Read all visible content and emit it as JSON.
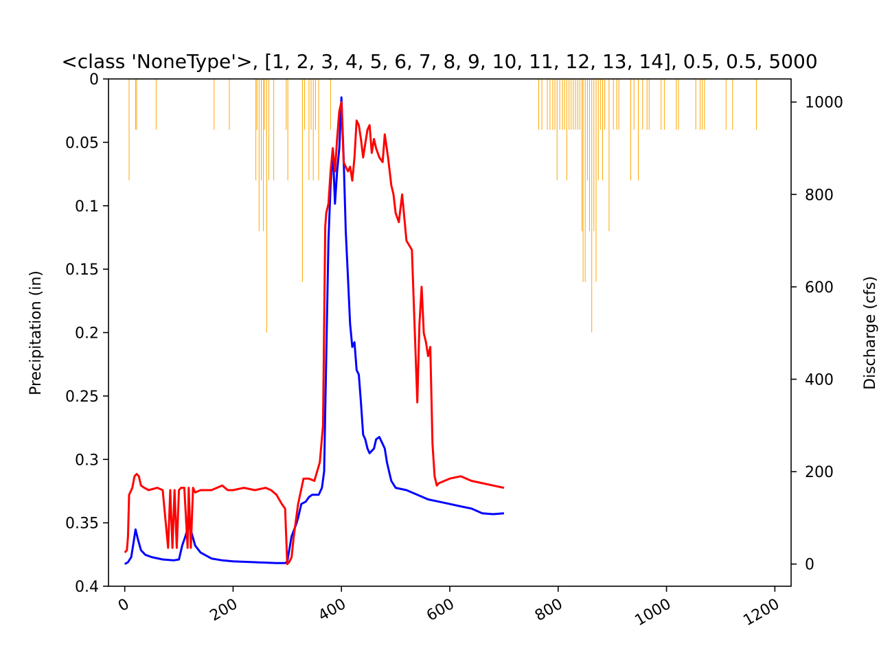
{
  "chart_data": {
    "type": "line",
    "title": "<class 'NoneType'>, [1, 2, 3, 4, 5, 6, 7, 8, 9, 10, 11, 12, 13, 14], 0.5, 0.5, 5000",
    "xlabel": "",
    "x_ticks": [
      "0",
      "200",
      "400",
      "600",
      "800",
      "1000",
      "1200"
    ],
    "xlim": [
      -30,
      1230
    ],
    "left_axis": {
      "label": "Precipitation (in)",
      "ylim": [
        0.4,
        0
      ],
      "inverted": true,
      "ticks": [
        "0",
        "0.05",
        "0.1",
        "0.15",
        "0.2",
        "0.25",
        "0.3",
        "0.35",
        "0.4"
      ]
    },
    "right_axis": {
      "label": "Discharge (cfs)",
      "ylim": [
        -48,
        1050
      ],
      "ticks": [
        "0",
        "200",
        "400",
        "600",
        "800",
        "1000"
      ]
    },
    "precipitation": {
      "color": "#ffa500",
      "type": "bar",
      "x": [
        8,
        20,
        22,
        58,
        165,
        193,
        242,
        244,
        248,
        252,
        256,
        258,
        262,
        266,
        275,
        298,
        301,
        328,
        332,
        340,
        344,
        348,
        352,
        358,
        380,
        764,
        770,
        780,
        785,
        790,
        794,
        798,
        803,
        808,
        812,
        816,
        820,
        824,
        828,
        832,
        836,
        840,
        844,
        846,
        850,
        854,
        858,
        862,
        866,
        870,
        874,
        878,
        882,
        886,
        894,
        902,
        908,
        912,
        934,
        940,
        948,
        956,
        964,
        968,
        990,
        996,
        1018,
        1022,
        1054,
        1062,
        1066,
        1070,
        1110,
        1122,
        1166
      ],
      "values": [
        0.08,
        0.04,
        0.04,
        0.04,
        0.04,
        0.04,
        0.08,
        0.04,
        0.12,
        0.08,
        0.12,
        0.04,
        0.2,
        0.08,
        0.08,
        0.04,
        0.08,
        0.16,
        0.04,
        0.08,
        0.04,
        0.08,
        0.04,
        0.08,
        0.04,
        0.04,
        0.04,
        0.04,
        0.04,
        0.04,
        0.04,
        0.08,
        0.04,
        0.04,
        0.04,
        0.08,
        0.04,
        0.04,
        0.04,
        0.04,
        0.04,
        0.04,
        0.12,
        0.16,
        0.16,
        0.08,
        0.12,
        0.2,
        0.12,
        0.16,
        0.08,
        0.04,
        0.08,
        0.04,
        0.12,
        0.04,
        0.04,
        0.04,
        0.08,
        0.04,
        0.08,
        0.04,
        0.04,
        0.04,
        0.04,
        0.04,
        0.04,
        0.04,
        0.04,
        0.04,
        0.04,
        0.04,
        0.04,
        0.04,
        0.04
      ]
    },
    "series": [
      {
        "color": "#0000ff",
        "x": [
          0,
          6,
          12,
          16,
          20,
          24,
          30,
          38,
          50,
          70,
          90,
          100,
          106,
          112,
          118,
          124,
          130,
          140,
          160,
          180,
          200,
          240,
          280,
          296,
          300,
          308,
          316,
          320,
          326,
          334,
          340,
          346,
          352,
          358,
          364,
          368,
          372,
          376,
          380,
          384,
          388,
          392,
          396,
          400,
          404,
          408,
          412,
          416,
          420,
          424,
          428,
          432,
          436,
          440,
          444,
          448,
          452,
          456,
          460,
          464,
          470,
          476,
          480,
          484,
          488,
          492,
          500,
          520,
          540,
          560,
          580,
          600,
          620,
          640,
          660,
          680,
          700
        ],
        "values": [
          0,
          4,
          15,
          45,
          75,
          55,
          30,
          20,
          15,
          10,
          8,
          10,
          40,
          60,
          85,
          65,
          40,
          25,
          12,
          8,
          6,
          4,
          2,
          2,
          5,
          60,
          85,
          100,
          130,
          135,
          145,
          150,
          150,
          150,
          165,
          200,
          450,
          700,
          820,
          900,
          780,
          850,
          900,
          1010,
          880,
          720,
          620,
          520,
          470,
          480,
          420,
          410,
          350,
          280,
          270,
          250,
          240,
          245,
          250,
          270,
          275,
          260,
          250,
          220,
          200,
          180,
          165,
          160,
          150,
          140,
          135,
          130,
          125,
          120,
          110,
          108,
          110
        ]
      },
      {
        "color": "#ff0000",
        "x": [
          0,
          4,
          6,
          8,
          10,
          14,
          18,
          22,
          26,
          30,
          36,
          44,
          60,
          70,
          80,
          84,
          88,
          92,
          96,
          100,
          104,
          110,
          116,
          118,
          122,
          126,
          130,
          140,
          160,
          180,
          190,
          200,
          220,
          240,
          260,
          270,
          280,
          290,
          296,
          300,
          304,
          308,
          312,
          320,
          330,
          340,
          350,
          360,
          366,
          370,
          372,
          376,
          380,
          384,
          388,
          392,
          396,
          400,
          404,
          408,
          412,
          416,
          420,
          424,
          428,
          432,
          436,
          440,
          444,
          448,
          452,
          456,
          460,
          464,
          470,
          476,
          480,
          486,
          492,
          496,
          500,
          506,
          512,
          520,
          530,
          540,
          544,
          548,
          552,
          556,
          560,
          564,
          568,
          572,
          576,
          580,
          600,
          620,
          640,
          660,
          680,
          700
        ],
        "values": [
          25,
          30,
          60,
          150,
          155,
          165,
          190,
          195,
          190,
          170,
          165,
          160,
          165,
          160,
          35,
          160,
          35,
          160,
          35,
          160,
          165,
          165,
          35,
          165,
          35,
          165,
          155,
          160,
          160,
          170,
          160,
          160,
          165,
          160,
          165,
          160,
          150,
          130,
          120,
          0,
          5,
          15,
          60,
          130,
          185,
          185,
          180,
          220,
          300,
          730,
          760,
          780,
          850,
          900,
          850,
          920,
          980,
          1000,
          870,
          860,
          850,
          860,
          830,
          880,
          960,
          950,
          920,
          880,
          910,
          940,
          950,
          890,
          920,
          900,
          880,
          870,
          930,
          880,
          820,
          800,
          760,
          740,
          800,
          700,
          680,
          350,
          520,
          600,
          500,
          480,
          450,
          470,
          260,
          190,
          170,
          175,
          185,
          190,
          180,
          175,
          170,
          165
        ]
      }
    ]
  }
}
